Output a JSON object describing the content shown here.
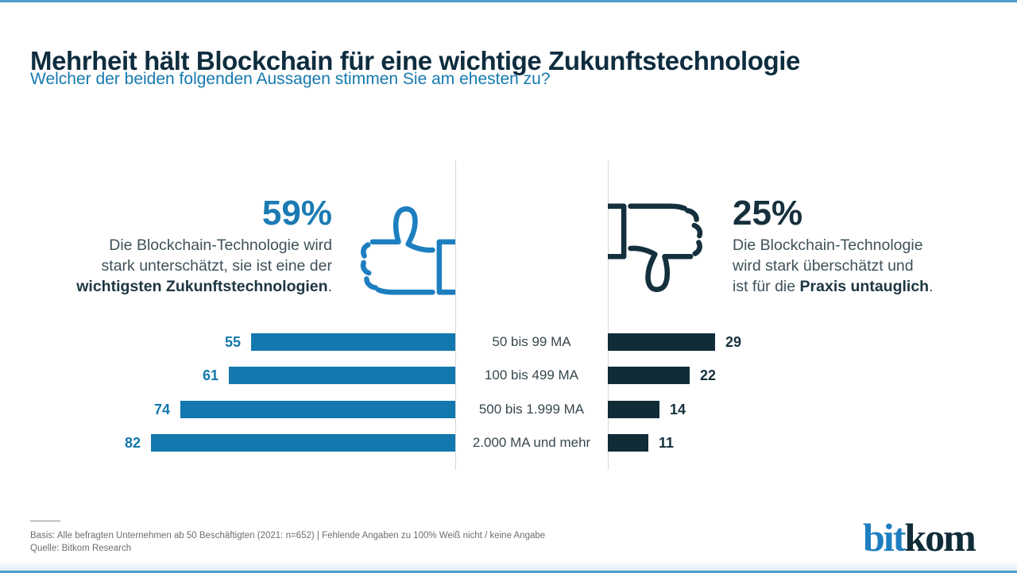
{
  "header": {
    "title": "Mehrheit hält Blockchain für eine wichtige Zukunftstechnologie",
    "subtitle": "Welcher der beiden folgenden Aussagen stimmen Sie am ehesten zu?"
  },
  "stats": {
    "left": {
      "value": "59%",
      "line1": "Die Blockchain-Technologie wird",
      "line2": "stark unterschätzt, sie ist eine der",
      "line3_bold": "wichtigsten Zukunftstechnologien",
      "line3_end": "."
    },
    "right": {
      "value": "25%",
      "line1": "Die Blockchain-Technologie",
      "line2": "wird stark überschätzt und",
      "line3_pre": "ist für die ",
      "line3_bold": "Praxis untauglich",
      "line3_end": "."
    }
  },
  "chart_data": {
    "type": "bar",
    "orientation": "horizontal-diverging",
    "categories": [
      "50 bis 99 MA",
      "100 bis 499 MA",
      "500 bis 1.999 MA",
      "2.000 MA und mehr"
    ],
    "series": [
      {
        "name": "stark unterschätzt / wichtige Zukunftstechnologie (59%)",
        "side": "left",
        "color": "#1378ad",
        "values": [
          55,
          61,
          74,
          82
        ]
      },
      {
        "name": "stark überschätzt / Praxis untauglich (25%)",
        "side": "right",
        "color": "#102c37",
        "values": [
          29,
          22,
          14,
          11
        ]
      }
    ],
    "unit": "%",
    "xlim": [
      0,
      100
    ],
    "grid": false,
    "value_labels": "outside-ends"
  },
  "footer": {
    "basis": "Basis: Alle befragten Unternehmen ab 50 Beschäftigten (2021: n=652) | Fehlende Angaben zu 100% Weiß nicht / keine Angabe",
    "source": "Quelle: Bitkom Research"
  },
  "logo": {
    "part1": "bit",
    "part2": "kom"
  },
  "colors": {
    "accent_blue": "#1378ad",
    "icon_blue": "#1d7fc0",
    "dark_navy": "#102c37",
    "title_navy": "#0e2d3f",
    "body_text": "#3f515a",
    "axis_gray": "#d7d7d7",
    "footer_gray": "#6e6e6e",
    "border_blue": "#4d9ecf",
    "bottom_band": "#ddeef8"
  }
}
